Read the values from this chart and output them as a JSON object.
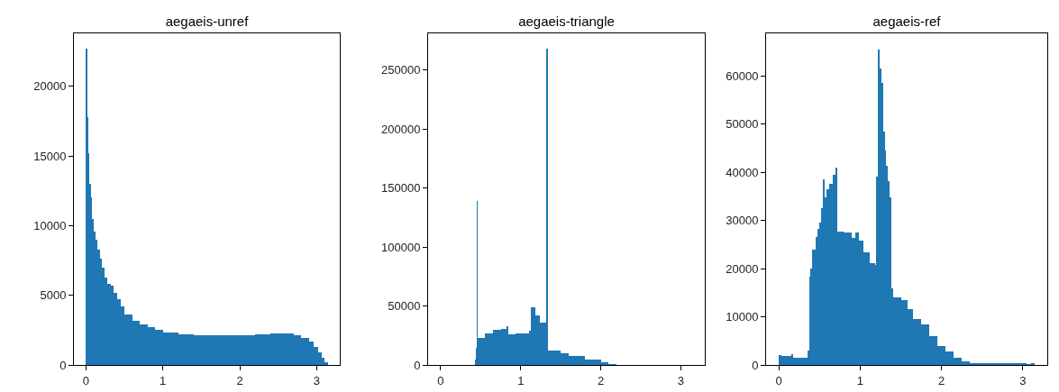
{
  "chart_data": [
    {
      "type": "histogram",
      "title": "aegaeis-unref",
      "color": "#1f77b4",
      "bins": [
        0,
        0.016,
        0.032,
        0.048,
        0.064,
        0.08,
        0.1,
        0.12,
        0.15,
        0.18,
        0.21,
        0.24,
        0.28,
        0.32,
        0.36,
        0.4,
        0.45,
        0.5,
        0.6,
        0.7,
        0.8,
        0.9,
        1.0,
        1.2,
        1.4,
        1.6,
        1.8,
        2.0,
        2.2,
        2.4,
        2.6,
        2.7,
        2.8,
        2.9,
        2.96,
        3.02,
        3.06,
        3.1,
        3.145
      ],
      "values": [
        22700,
        17800,
        15200,
        13000,
        12000,
        10500,
        9600,
        9000,
        8300,
        7600,
        7000,
        6300,
        5800,
        5700,
        5200,
        4700,
        4200,
        3600,
        3200,
        2900,
        2700,
        2550,
        2300,
        2200,
        2150,
        2150,
        2150,
        2150,
        2200,
        2250,
        2250,
        2150,
        1950,
        1650,
        1300,
        900,
        500,
        200
      ],
      "xlim": [
        -0.157,
        3.3
      ],
      "ylim": [
        0,
        23800
      ],
      "xticks": [
        0,
        1,
        2,
        3
      ],
      "yticks": [
        0,
        5000,
        10000,
        15000,
        20000
      ]
    },
    {
      "type": "histogram",
      "title": "aegaeis-triangle",
      "color": "#1f77b4",
      "bins": [
        0.424,
        0.44,
        0.447,
        0.467,
        0.55,
        0.65,
        0.75,
        0.82,
        0.85,
        0.94,
        1.1,
        1.13,
        1.18,
        1.24,
        1.318,
        1.337,
        1.5,
        1.6,
        1.8,
        2.0,
        2.1,
        2.2
      ],
      "values": [
        4600,
        14500,
        139000,
        23000,
        26500,
        30000,
        30500,
        33000,
        26300,
        26700,
        28800,
        49000,
        42000,
        36000,
        268000,
        12000,
        10000,
        8000,
        4500,
        2500,
        1000
      ],
      "xlim": [
        -0.157,
        3.3
      ],
      "ylim": [
        0,
        281000
      ],
      "xticks": [
        0,
        1,
        2,
        3
      ],
      "yticks": [
        0,
        50000,
        100000,
        150000,
        200000,
        250000
      ]
    },
    {
      "type": "histogram",
      "title": "aegaeis-ref",
      "color": "#1f77b4",
      "bins": [
        0,
        0.035,
        0.15,
        0.17,
        0.35,
        0.37,
        0.39,
        0.41,
        0.45,
        0.48,
        0.5,
        0.52,
        0.54,
        0.56,
        0.58,
        0.62,
        0.66,
        0.7,
        0.72,
        0.8,
        0.9,
        0.94,
        0.98,
        1.04,
        1.12,
        1.18,
        1.2,
        1.22,
        1.24,
        1.26,
        1.28,
        1.3,
        1.32,
        1.34,
        1.36,
        1.38,
        1.4,
        1.5,
        1.58,
        1.65,
        1.75,
        1.85,
        1.95,
        2.05,
        2.15,
        2.25,
        2.35,
        2.5,
        3.05,
        3.1,
        3.14
      ],
      "values": [
        2000,
        1800,
        2300,
        1500,
        3000,
        18300,
        20000,
        24000,
        26500,
        28300,
        29500,
        32600,
        38600,
        34800,
        36400,
        37600,
        39500,
        40900,
        27700,
        27400,
        26400,
        27500,
        25800,
        23300,
        21100,
        20800,
        39000,
        65500,
        61600,
        58500,
        48500,
        44500,
        41400,
        38200,
        34800,
        15900,
        14000,
        13400,
        11500,
        9600,
        8400,
        5900,
        4000,
        2800,
        1500,
        800,
        400,
        300,
        100,
        300
      ],
      "xlim": [
        -0.157,
        3.3
      ],
      "ylim": [
        0,
        68800
      ],
      "xticks": [
        0,
        1,
        2,
        3
      ],
      "yticks": [
        0,
        10000,
        20000,
        30000,
        40000,
        50000,
        60000
      ]
    }
  ]
}
